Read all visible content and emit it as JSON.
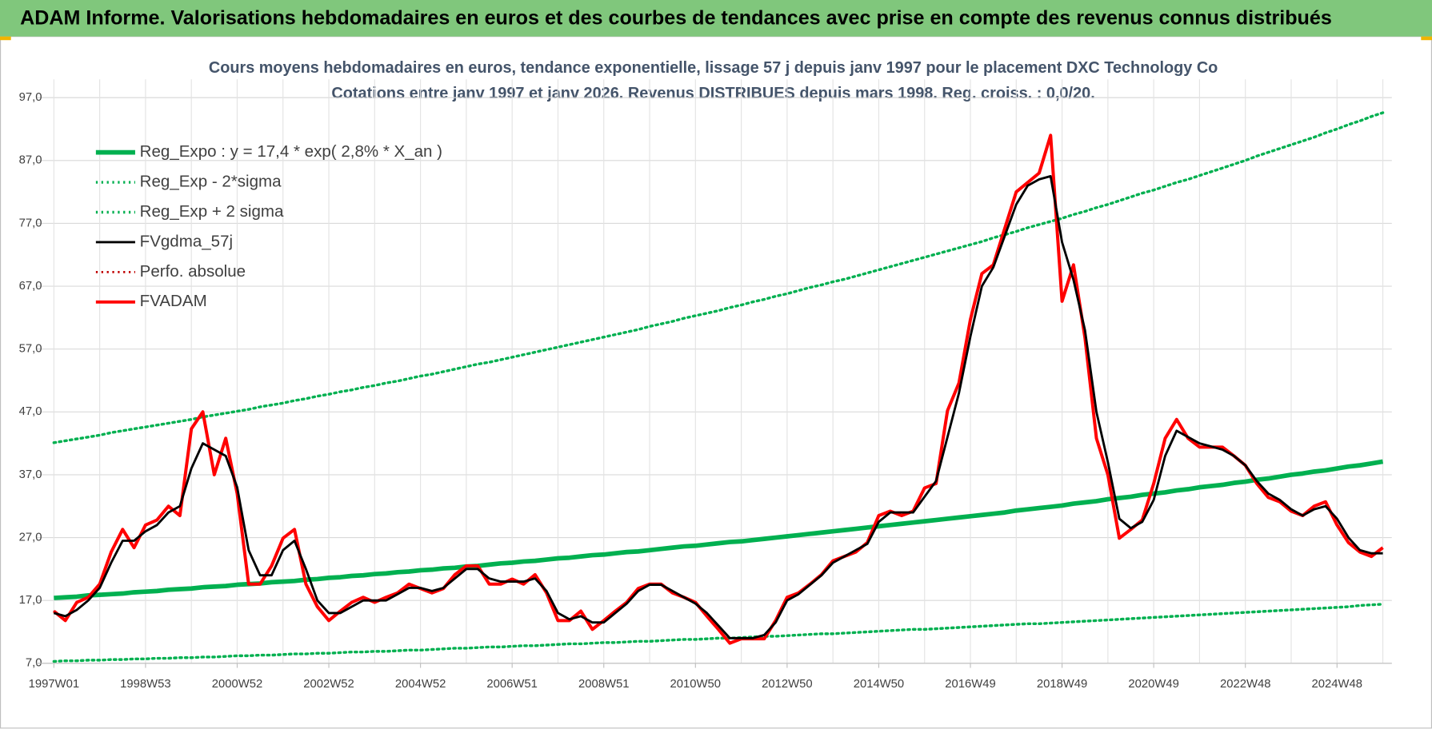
{
  "header": "ADAM Informe. Valorisations hebdomadaires en euros et des courbes de tendances avec prise en compte des revenus connus distribués",
  "chart_data": {
    "type": "line",
    "title": "Cours moyens hebdomadaires en euros, tendance exponentielle, lissage 57 j depuis janv 1997 pour le placement DXC Technology Co",
    "subtitle": "Cotations entre janv 1997 et janv 2026. Revenus DISTRIBUES depuis mars 1998.  Reg. croiss. : 0,0/20.",
    "categories": [
      "1997W01",
      null,
      null,
      null,
      null,
      null,
      null,
      null,
      "1998W53",
      null,
      null,
      null,
      null,
      null,
      null,
      null,
      "2000W52",
      null,
      null,
      null,
      null,
      null,
      null,
      null,
      "2002W52",
      null,
      null,
      null,
      null,
      null,
      null,
      null,
      "2004W52",
      null,
      null,
      null,
      null,
      null,
      null,
      null,
      "2006W51",
      null,
      null,
      null,
      null,
      null,
      null,
      null,
      "2008W51",
      null,
      null,
      null,
      null,
      null,
      null,
      null,
      "2010W50",
      null,
      null,
      null,
      null,
      null,
      null,
      null,
      "2012W50",
      null,
      null,
      null,
      null,
      null,
      null,
      null,
      "2014W50",
      null,
      null,
      null,
      null,
      null,
      null,
      null,
      "2016W49",
      null,
      null,
      null,
      null,
      null,
      null,
      null,
      "2018W49",
      null,
      null,
      null,
      null,
      null,
      null,
      null,
      "2020W49",
      null,
      null,
      null,
      null,
      null,
      null,
      null,
      "2022W48",
      null,
      null,
      null,
      null,
      null,
      null,
      null,
      "2024W48",
      null,
      null,
      null,
      null
    ],
    "ylim": [
      7,
      97
    ],
    "yticks": [
      {
        "value": 7,
        "label": "7,0"
      },
      {
        "value": 17,
        "label": "17,0"
      },
      {
        "value": 27,
        "label": "27,0"
      },
      {
        "value": 37,
        "label": "37,0"
      },
      {
        "value": 47,
        "label": "47,0"
      },
      {
        "value": 57,
        "label": "57,0"
      },
      {
        "value": 67,
        "label": "67,0"
      },
      {
        "value": 77,
        "label": "77,0"
      },
      {
        "value": 87,
        "label": "87,0"
      },
      {
        "value": 97,
        "label": "97,0"
      }
    ],
    "grid": true,
    "legend": "upper left",
    "series": [
      {
        "name": "Reg_Expo : y = 17,4 * exp( 2,8% *  X_an )",
        "color": "#00b050",
        "line_style": "solid",
        "values": [
          17.4,
          17.5,
          17.6,
          17.8,
          17.9,
          18.0,
          18.1,
          18.3,
          18.4,
          18.5,
          18.7,
          18.8,
          18.9,
          19.1,
          19.2,
          19.3,
          19.5,
          19.6,
          19.7,
          19.9,
          20.0,
          20.1,
          20.3,
          20.4,
          20.6,
          20.7,
          20.9,
          21.0,
          21.2,
          21.3,
          21.5,
          21.6,
          21.8,
          21.9,
          22.1,
          22.2,
          22.4,
          22.5,
          22.7,
          22.9,
          23.0,
          23.2,
          23.3,
          23.5,
          23.7,
          23.8,
          24.0,
          24.2,
          24.3,
          24.5,
          24.7,
          24.8,
          25.0,
          25.2,
          25.4,
          25.6,
          25.7,
          25.9,
          26.1,
          26.3,
          26.4,
          26.6,
          26.8,
          27.0,
          27.2,
          27.4,
          27.6,
          27.8,
          28.0,
          28.2,
          28.4,
          28.6,
          28.8,
          29.0,
          29.2,
          29.4,
          29.6,
          29.8,
          30.0,
          30.2,
          30.4,
          30.6,
          30.8,
          31.0,
          31.3,
          31.5,
          31.7,
          31.9,
          32.1,
          32.4,
          32.6,
          32.8,
          33.1,
          33.3,
          33.5,
          33.8,
          34.0,
          34.2,
          34.5,
          34.7,
          35.0,
          35.2,
          35.4,
          35.7,
          35.9,
          36.2,
          36.4,
          36.7,
          37.0,
          37.2,
          37.5,
          37.7,
          38.0,
          38.3,
          38.5,
          38.8,
          39.1
        ]
      },
      {
        "name": "Reg_Exp - 2*sigma",
        "color": "#00b050",
        "line_style": "dotted",
        "values": [
          7.3,
          7.4,
          7.4,
          7.5,
          7.5,
          7.6,
          7.6,
          7.7,
          7.7,
          7.8,
          7.8,
          7.9,
          7.9,
          8.0,
          8.0,
          8.1,
          8.2,
          8.2,
          8.3,
          8.3,
          8.4,
          8.5,
          8.5,
          8.6,
          8.6,
          8.7,
          8.8,
          8.8,
          8.9,
          8.9,
          9.0,
          9.1,
          9.1,
          9.2,
          9.3,
          9.4,
          9.4,
          9.5,
          9.6,
          9.6,
          9.7,
          9.8,
          9.8,
          9.9,
          10.0,
          10.1,
          10.1,
          10.2,
          10.3,
          10.3,
          10.4,
          10.5,
          10.5,
          10.6,
          10.7,
          10.8,
          10.8,
          10.9,
          11.0,
          11.0,
          11.1,
          11.2,
          11.3,
          11.3,
          11.4,
          11.5,
          11.6,
          11.7,
          11.7,
          11.8,
          11.9,
          12.0,
          12.1,
          12.2,
          12.3,
          12.4,
          12.4,
          12.5,
          12.6,
          12.7,
          12.8,
          12.9,
          13.0,
          13.1,
          13.2,
          13.3,
          13.3,
          13.4,
          13.5,
          13.6,
          13.7,
          13.8,
          13.9,
          14.0,
          14.1,
          14.2,
          14.3,
          14.4,
          14.5,
          14.6,
          14.7,
          14.8,
          14.9,
          15.0,
          15.1,
          15.2,
          15.3,
          15.4,
          15.5,
          15.6,
          15.7,
          15.8,
          15.9,
          16.0,
          16.2,
          16.3,
          16.4
        ]
      },
      {
        "name": "Reg_Exp + 2 sigma",
        "color": "#00b050",
        "line_style": "dotted",
        "values": [
          42.1,
          42.4,
          42.7,
          43.0,
          43.3,
          43.7,
          44.0,
          44.3,
          44.6,
          44.9,
          45.2,
          45.5,
          45.8,
          46.2,
          46.5,
          46.8,
          47.1,
          47.4,
          47.8,
          48.1,
          48.4,
          48.8,
          49.1,
          49.5,
          49.8,
          50.2,
          50.5,
          50.9,
          51.2,
          51.6,
          51.9,
          52.3,
          52.7,
          53.0,
          53.4,
          53.8,
          54.2,
          54.6,
          54.9,
          55.3,
          55.7,
          56.1,
          56.5,
          56.9,
          57.3,
          57.7,
          58.1,
          58.5,
          58.9,
          59.3,
          59.7,
          60.1,
          60.6,
          61.0,
          61.4,
          61.9,
          62.3,
          62.7,
          63.1,
          63.6,
          64.0,
          64.5,
          64.9,
          65.4,
          65.8,
          66.3,
          66.8,
          67.2,
          67.7,
          68.1,
          68.6,
          69.1,
          69.6,
          70.1,
          70.6,
          71.1,
          71.6,
          72.1,
          72.6,
          73.1,
          73.6,
          74.1,
          74.7,
          75.2,
          75.7,
          76.3,
          76.8,
          77.3,
          77.8,
          78.4,
          78.9,
          79.5,
          80.0,
          80.6,
          81.2,
          81.8,
          82.3,
          82.9,
          83.5,
          84.0,
          84.6,
          85.2,
          85.8,
          86.4,
          87.0,
          87.7,
          88.3,
          88.9,
          89.5,
          90.1,
          90.7,
          91.4,
          92.0,
          92.7,
          93.3,
          94.0,
          94.6
        ]
      },
      {
        "name": "FVgdma_57j",
        "color": "#000000",
        "line_style": "solid",
        "values": [
          15,
          14.5,
          15.5,
          17,
          19,
          23,
          26.5,
          26.5,
          28,
          29,
          31,
          32,
          38,
          42,
          41,
          40,
          35,
          25,
          21,
          21,
          25,
          26.5,
          22,
          17,
          15,
          15,
          16,
          17,
          17,
          17,
          18,
          19,
          19,
          18.5,
          19,
          20.5,
          22,
          22,
          20.5,
          20,
          20,
          20,
          20.5,
          18.5,
          15,
          14,
          14.5,
          13.5,
          13.5,
          15,
          16.5,
          18.5,
          19.5,
          19.5,
          18.5,
          17.5,
          16.5,
          15,
          13,
          11,
          11,
          11,
          11.5,
          13.5,
          17,
          18,
          19.5,
          21,
          23,
          24,
          25,
          26,
          29.5,
          31,
          31,
          31,
          33.5,
          36,
          43,
          50,
          59,
          67,
          70,
          75,
          80,
          83,
          84,
          84.5,
          74,
          68,
          60,
          47,
          39,
          30,
          28.5,
          29.5,
          33,
          40,
          44,
          43,
          42,
          41.5,
          41,
          40,
          38.5,
          36,
          34,
          33,
          31.5,
          30.5,
          31.5,
          32,
          30,
          27,
          25,
          24.5,
          24.5
        ]
      },
      {
        "name": "Perfo. absolue",
        "color": "#c00000",
        "line_style": "dotted",
        "values": [
          15.3,
          13.8,
          16.7,
          17.5,
          19.6,
          24.7,
          28.3,
          25.4,
          29,
          29.8,
          32,
          30.5,
          44.3,
          47,
          37,
          42.8,
          34,
          19.6,
          19.6,
          22.5,
          26.9,
          28.3,
          19.6,
          16,
          13.8,
          15.3,
          16.7,
          17.5,
          16.7,
          17.5,
          18.2,
          19.6,
          18.9,
          18.2,
          18.9,
          21.1,
          22.5,
          22.5,
          19.6,
          19.6,
          20.4,
          19.6,
          21.1,
          18.2,
          13.8,
          13.8,
          15.3,
          12.4,
          13.8,
          15.3,
          16.7,
          18.9,
          19.6,
          19.6,
          18.2,
          17.5,
          16.7,
          14.5,
          12.4,
          10.2,
          10.9,
          10.9,
          10.9,
          13.8,
          17.5,
          18.2,
          19.6,
          21.1,
          23.3,
          24,
          24.7,
          26.2,
          30.5,
          31.2,
          30.5,
          31.2,
          34.9,
          35.6,
          47.2,
          51.6,
          61.7,
          69,
          70.4,
          76.2,
          82,
          83.5,
          85,
          91,
          64.6,
          70.4,
          58.8,
          42.8,
          37,
          26.9,
          28.3,
          29.8,
          35.6,
          42.8,
          45.8,
          42.8,
          41.4,
          41.4,
          41.4,
          40,
          38.5,
          35.6,
          33.4,
          32.7,
          31.2,
          30.5,
          32,
          32.7,
          29,
          26.2,
          24.7,
          24,
          25.4
        ]
      },
      {
        "name": "FVADAM",
        "color": "#ff0000",
        "line_style": "solid",
        "values": [
          15.3,
          13.8,
          16.7,
          17.5,
          19.6,
          24.7,
          28.3,
          25.4,
          29,
          29.8,
          32,
          30.5,
          44.3,
          47,
          37,
          42.8,
          34,
          19.6,
          19.6,
          22.5,
          26.9,
          28.3,
          19.6,
          16,
          13.8,
          15.3,
          16.7,
          17.5,
          16.7,
          17.5,
          18.2,
          19.6,
          18.9,
          18.2,
          18.9,
          21.1,
          22.5,
          22.5,
          19.6,
          19.6,
          20.4,
          19.6,
          21.1,
          18.2,
          13.8,
          13.8,
          15.3,
          12.4,
          13.8,
          15.3,
          16.7,
          18.9,
          19.6,
          19.6,
          18.2,
          17.5,
          16.7,
          14.5,
          12.4,
          10.2,
          10.9,
          10.9,
          10.9,
          13.8,
          17.5,
          18.2,
          19.6,
          21.1,
          23.3,
          24,
          24.7,
          26.2,
          30.5,
          31.2,
          30.5,
          31.2,
          34.9,
          35.6,
          47.2,
          51.6,
          61.7,
          69,
          70.4,
          76.2,
          82,
          83.5,
          85,
          91,
          64.6,
          70.4,
          58.8,
          42.8,
          37,
          26.9,
          28.3,
          29.8,
          35.6,
          42.8,
          45.8,
          42.8,
          41.4,
          41.4,
          41.4,
          40,
          38.5,
          35.6,
          33.4,
          32.7,
          31.2,
          30.5,
          32,
          32.7,
          29,
          26.2,
          24.7,
          24,
          25.4
        ]
      }
    ]
  }
}
